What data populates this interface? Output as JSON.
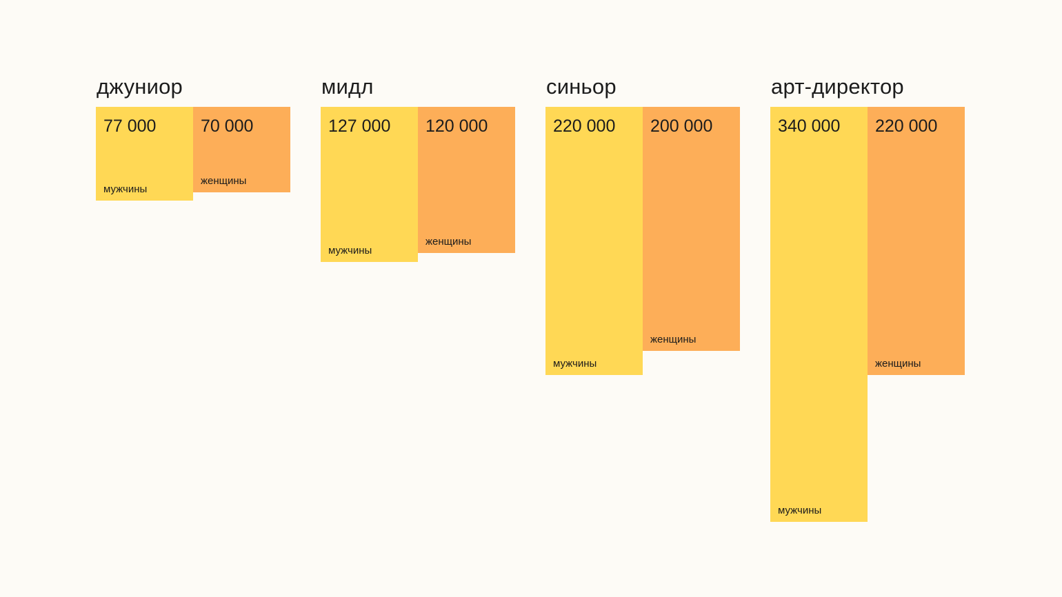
{
  "page": {
    "background": "#FDFBF6",
    "text_color": "#1C1C1C"
  },
  "chart_data": {
    "type": "bar",
    "orientation": "vertical-top-aligned-hanging",
    "categories": [
      "джуниор",
      "мидл",
      "синьор",
      "арт-директор"
    ],
    "series": [
      {
        "name": "мужчины",
        "color": "#FFD855",
        "values": [
          77000,
          127000,
          220000,
          340000
        ],
        "labels": [
          "77 000",
          "127 000",
          "220 000",
          "340 000"
        ]
      },
      {
        "name": "женщины",
        "color": "#FDAE58",
        "values": [
          70000,
          120000,
          200000,
          220000
        ],
        "labels": [
          "70 000",
          "120 000",
          "200 000",
          "220 000"
        ]
      }
    ],
    "value_range": [
      0,
      340000
    ],
    "grid": false,
    "legend": "series name printed at bottom-left inside each bar",
    "value_labels_position": "top-left inside each bar"
  }
}
